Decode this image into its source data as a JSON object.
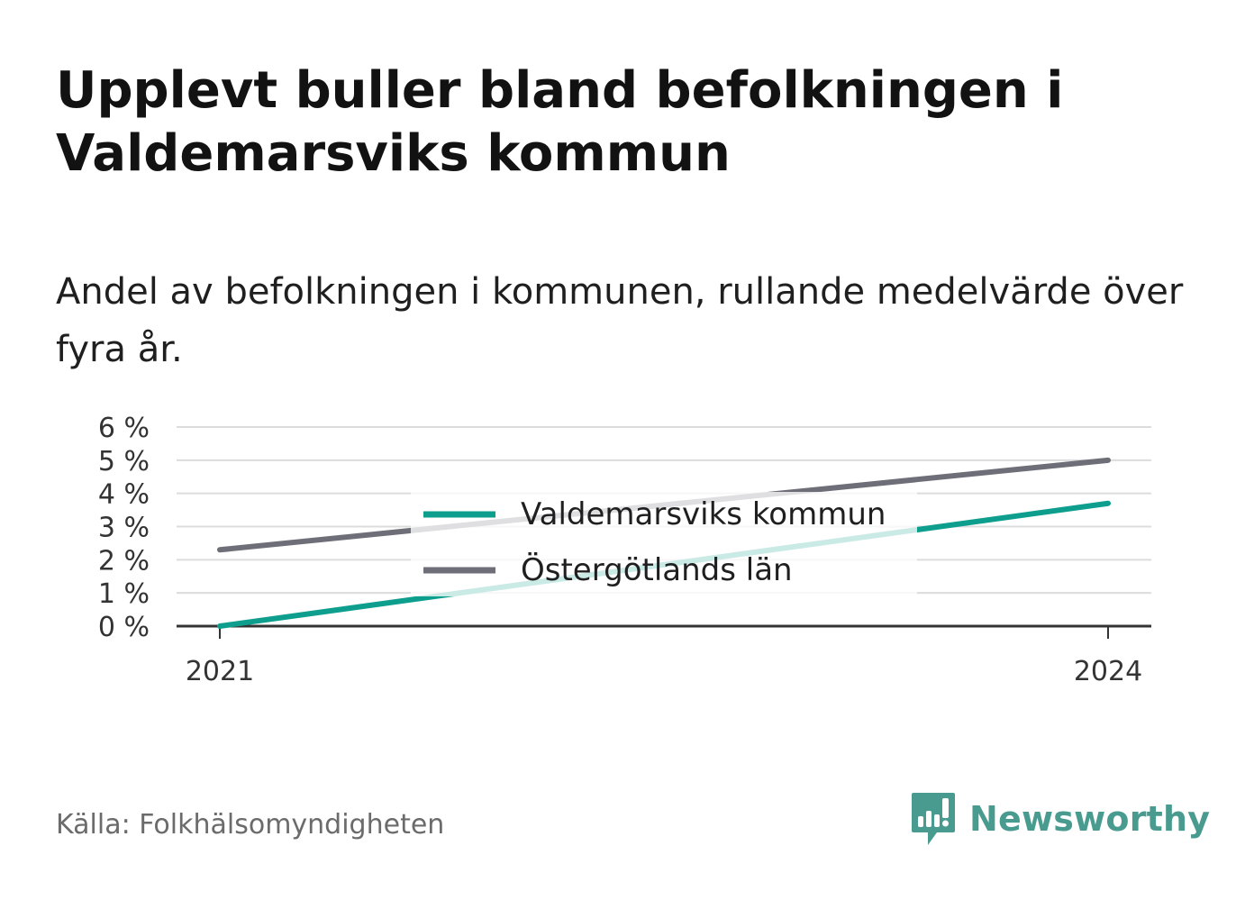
{
  "title": "Upplevt buller bland befolkningen i Valdemarsviks kommun",
  "subtitle": "Andel av befolkningen i kommunen, rullande medelvärde över fyra år.",
  "source": "Källa: Folkhälsomyndigheten",
  "brand": {
    "name": "Newsworthy",
    "icon": "newsworthy-logo-icon",
    "color": "#4a9b8f"
  },
  "chart_data": {
    "type": "line",
    "x": [
      "2021",
      "2024"
    ],
    "x_tick_labels": [
      "2021",
      "2024"
    ],
    "ylim": [
      0,
      6
    ],
    "y_ticks": [
      0,
      1,
      2,
      3,
      4,
      5,
      6
    ],
    "y_tick_labels": [
      "0 %",
      "1 %",
      "2 %",
      "3 %",
      "4 %",
      "5 %",
      "6 %"
    ],
    "grid": true,
    "legend_position": "center",
    "series": [
      {
        "name": "Valdemarsviks kommun",
        "values": [
          0.0,
          3.7
        ],
        "color": "#0e9e8e"
      },
      {
        "name": "Östergötlands län",
        "values": [
          2.3,
          5.0
        ],
        "color": "#6e6e78"
      }
    ],
    "xlabel": "",
    "ylabel": ""
  }
}
